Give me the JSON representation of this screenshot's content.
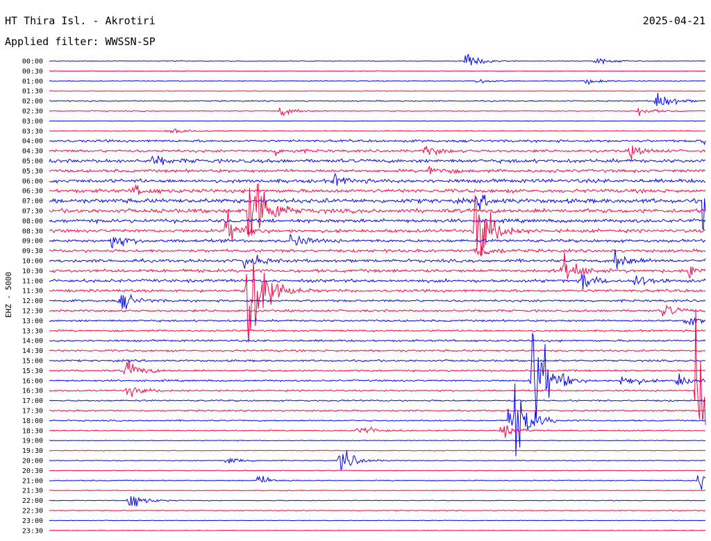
{
  "header": {
    "station": "HT Thira Isl. - Akrotiri",
    "filter_line": "Applied filter: WWSSN-SP",
    "date": "2025-04-21"
  },
  "chart_data": {
    "type": "line",
    "subtype": "helicorder",
    "ylabel": "EHZ - 5000",
    "rows": [
      "00:00",
      "00:30",
      "01:00",
      "01:30",
      "02:00",
      "02:30",
      "03:00",
      "03:30",
      "04:00",
      "04:30",
      "05:00",
      "05:30",
      "06:00",
      "06:30",
      "07:00",
      "07:30",
      "08:00",
      "08:30",
      "09:00",
      "09:30",
      "10:00",
      "10:30",
      "11:00",
      "11:30",
      "12:00",
      "12:30",
      "13:00",
      "13:30",
      "14:00",
      "14:30",
      "15:00",
      "15:30",
      "16:00",
      "16:30",
      "17:00",
      "17:30",
      "18:00",
      "18:30",
      "19:00",
      "19:30",
      "20:00",
      "20:30",
      "21:00",
      "21:30",
      "22:00",
      "22:30",
      "23:00",
      "23:30"
    ],
    "row_duration_minutes": 30,
    "colors": [
      "#0000ff",
      "#ff0044"
    ],
    "noise_level": [
      0.3,
      0.3,
      0.4,
      0.3,
      0.6,
      0.4,
      0.3,
      0.4,
      1.2,
      1.3,
      1.8,
      1.5,
      1.8,
      1.8,
      2.2,
      2.0,
      1.8,
      1.6,
      1.5,
      1.4,
      1.5,
      1.6,
      1.5,
      1.3,
      1.1,
      1.1,
      1.0,
      0.9,
      1.0,
      1.0,
      1.0,
      0.9,
      0.9,
      0.8,
      0.8,
      0.7,
      0.7,
      0.6,
      0.4,
      0.4,
      0.4,
      0.4,
      0.5,
      0.4,
      0.4,
      0.4,
      0.3,
      0.3
    ],
    "events": [
      {
        "row": "00:00",
        "minute": 19.0,
        "amplitude": 11
      },
      {
        "row": "00:00",
        "minute": 24.9,
        "amplitude": 5
      },
      {
        "row": "01:00",
        "minute": 19.5,
        "amplitude": 4
      },
      {
        "row": "01:00",
        "minute": 24.5,
        "amplitude": 5
      },
      {
        "row": "02:00",
        "minute": 27.7,
        "amplitude": 14
      },
      {
        "row": "02:30",
        "minute": 10.5,
        "amplitude": 6
      },
      {
        "row": "02:30",
        "minute": 26.9,
        "amplitude": 5
      },
      {
        "row": "03:30",
        "minute": 5.3,
        "amplitude": 6
      },
      {
        "row": "04:00",
        "minute": 29.8,
        "amplitude": 8
      },
      {
        "row": "04:30",
        "minute": 10.2,
        "amplitude": 5
      },
      {
        "row": "04:30",
        "minute": 17.1,
        "amplitude": 6
      },
      {
        "row": "04:30",
        "minute": 26.5,
        "amplitude": 7
      },
      {
        "row": "05:00",
        "minute": 4.7,
        "amplitude": 6
      },
      {
        "row": "05:30",
        "minute": 17.3,
        "amplitude": 7
      },
      {
        "row": "06:00",
        "minute": 13.0,
        "amplitude": 6
      },
      {
        "row": "06:30",
        "minute": 3.8,
        "amplitude": 6
      },
      {
        "row": "07:00",
        "minute": 19.5,
        "amplitude": 8
      },
      {
        "row": "07:00",
        "minute": 29.8,
        "amplitude": 28
      },
      {
        "row": "07:30",
        "minute": 9.1,
        "amplitude": 85
      },
      {
        "row": "08:30",
        "minute": 8.0,
        "amplitude": 20
      },
      {
        "row": "08:30",
        "minute": 19.4,
        "amplitude": 60
      },
      {
        "row": "09:00",
        "minute": 2.8,
        "amplitude": 10
      },
      {
        "row": "09:00",
        "minute": 11.0,
        "amplitude": 9
      },
      {
        "row": "09:30",
        "minute": 19.4,
        "amplitude": 12
      },
      {
        "row": "09:30",
        "minute": 30.5,
        "amplitude": 10
      },
      {
        "row": "10:00",
        "minute": 8.8,
        "amplitude": 12
      },
      {
        "row": "10:00",
        "minute": 25.8,
        "amplitude": 12
      },
      {
        "row": "10:00",
        "minute": 30.0,
        "amplitude": 14
      },
      {
        "row": "10:30",
        "minute": 23.4,
        "amplitude": 20
      },
      {
        "row": "10:30",
        "minute": 29.2,
        "amplitude": 10
      },
      {
        "row": "11:00",
        "minute": 24.3,
        "amplitude": 10
      },
      {
        "row": "11:00",
        "minute": 26.7,
        "amplitude": 8
      },
      {
        "row": "11:30",
        "minute": 9.0,
        "amplitude": 130
      },
      {
        "row": "12:00",
        "minute": 3.2,
        "amplitude": 12
      },
      {
        "row": "12:30",
        "minute": 28.0,
        "amplitude": 8
      },
      {
        "row": "12:30",
        "minute": 31.5,
        "amplitude": 160
      },
      {
        "row": "13:00",
        "minute": 29.0,
        "amplitude": 10
      },
      {
        "row": "15:30",
        "minute": 3.4,
        "amplitude": 14
      },
      {
        "row": "16:00",
        "minute": 22.0,
        "amplitude": 92
      },
      {
        "row": "16:00",
        "minute": 26.1,
        "amplitude": 10
      },
      {
        "row": "16:00",
        "minute": 28.6,
        "amplitude": 9
      },
      {
        "row": "16:30",
        "minute": 3.5,
        "amplitude": 8
      },
      {
        "row": "16:30",
        "minute": 29.5,
        "amplitude": 100
      },
      {
        "row": "17:30",
        "minute": 31.6,
        "amplitude": 60
      },
      {
        "row": "18:00",
        "minute": 21.0,
        "amplitude": 70
      },
      {
        "row": "18:30",
        "minute": 14.0,
        "amplitude": 10
      },
      {
        "row": "18:30",
        "minute": 20.6,
        "amplitude": 8
      },
      {
        "row": "20:00",
        "minute": 8.0,
        "amplitude": 6
      },
      {
        "row": "20:00",
        "minute": 13.2,
        "amplitude": 18
      },
      {
        "row": "21:00",
        "minute": 9.5,
        "amplitude": 6
      },
      {
        "row": "21:00",
        "minute": 29.6,
        "amplitude": 16
      },
      {
        "row": "21:30",
        "minute": 30.3,
        "amplitude": 8
      },
      {
        "row": "22:00",
        "minute": 3.6,
        "amplitude": 12
      }
    ]
  }
}
